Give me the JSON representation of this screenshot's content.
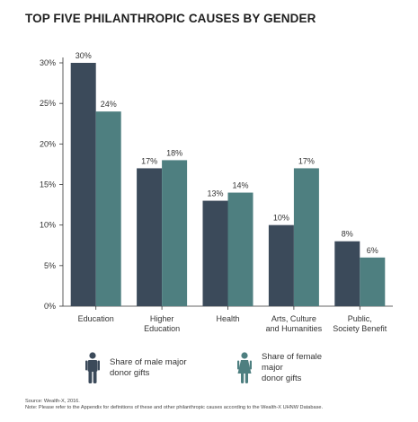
{
  "title": "TOP FIVE PHILANTHROPIC CAUSES BY GENDER",
  "chart_data": {
    "type": "bar",
    "categories": [
      [
        "Education"
      ],
      [
        "Higher",
        "Education"
      ],
      [
        "Health"
      ],
      [
        "Arts, Culture",
        "and Humanities"
      ],
      [
        "Public,",
        "Society Benefit"
      ]
    ],
    "series": [
      {
        "name": "Share of male major donor gifts",
        "color": "#3b4a5a",
        "values": [
          30,
          17,
          13,
          10,
          8
        ]
      },
      {
        "name": "Share of female major donor gifts",
        "color": "#4e7f80",
        "values": [
          24,
          18,
          14,
          17,
          6
        ]
      }
    ],
    "data_label_suffix": "%",
    "yticks": [
      "0%",
      "5%",
      "10%",
      "15%",
      "20%",
      "25%",
      "30%"
    ],
    "ylim": [
      0,
      30
    ],
    "grid": false,
    "legend_position": "bottom"
  },
  "legend": [
    {
      "icon": "male-person-icon",
      "color": "#3b4a5a",
      "line1": "Share of male major",
      "line2": "donor gifts"
    },
    {
      "icon": "female-person-icon",
      "color": "#4e7f80",
      "line1": "Share of female major",
      "line2": "donor gifts"
    }
  ],
  "footer": {
    "source": "Source: Wealth-X, 2016.",
    "note": "Note: Please refer to the Appendix for definitions of these and other philanthropic causes according to the Wealth-X UHNW Database."
  }
}
